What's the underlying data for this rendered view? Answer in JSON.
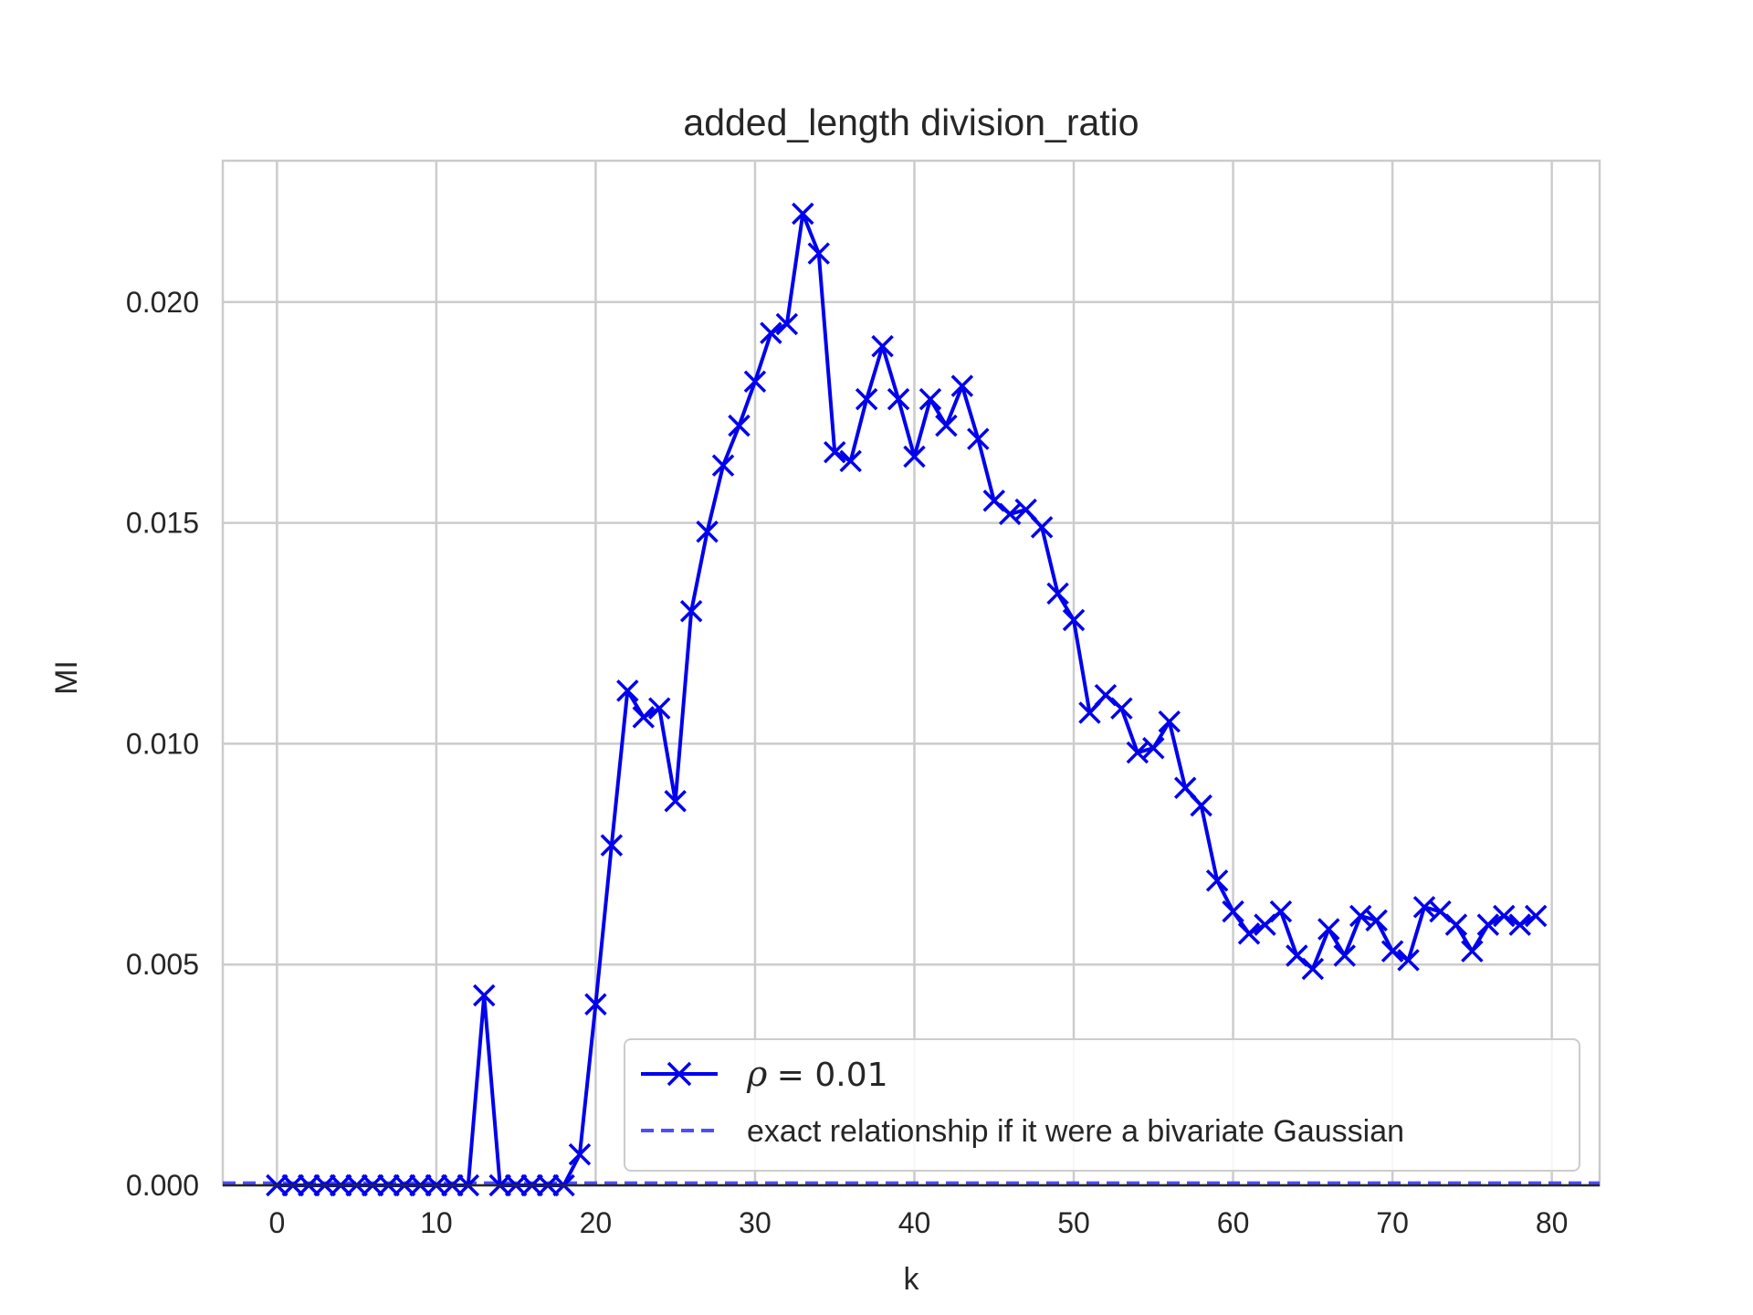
{
  "chart_data": {
    "type": "line",
    "title": "added_length division_ratio",
    "xlabel": "k",
    "ylabel": "MI",
    "xlim": [
      -3.4,
      83.0
    ],
    "ylim": [
      0.0,
      0.0232
    ],
    "xticks": [
      "0",
      "10",
      "20",
      "30",
      "40",
      "50",
      "60",
      "70",
      "80"
    ],
    "yticks": [
      "0.000",
      "0.005",
      "0.010",
      "0.015",
      "0.020"
    ],
    "grid": true,
    "legend_position": "bottom-right",
    "series": [
      {
        "name": "ρ = 0.01",
        "legend_symbol": "ρ",
        "legend_value": "= 0.01",
        "color": "#0000ee",
        "style": "solid",
        "marker": "x",
        "x": [
          0,
          1,
          2,
          3,
          4,
          5,
          6,
          7,
          8,
          9,
          10,
          11,
          12,
          13,
          14,
          15,
          16,
          17,
          18,
          19,
          20,
          21,
          22,
          23,
          24,
          25,
          26,
          27,
          28,
          29,
          30,
          31,
          32,
          33,
          34,
          35,
          36,
          37,
          38,
          39,
          40,
          41,
          42,
          43,
          44,
          45,
          46,
          47,
          48,
          49,
          50,
          51,
          52,
          53,
          54,
          55,
          56,
          57,
          58,
          59,
          60,
          61,
          62,
          63,
          64,
          65,
          66,
          67,
          68,
          69,
          70,
          71,
          72,
          73,
          74,
          75,
          76,
          77,
          78,
          79
        ],
        "y": [
          0.0,
          0.0,
          0.0,
          0.0,
          0.0,
          0.0,
          0.0,
          0.0,
          0.0,
          0.0,
          0.0,
          0.0,
          0.0,
          0.0043,
          0.0,
          0.0,
          0.0,
          0.0,
          0.0,
          0.0007,
          0.0041,
          0.0077,
          0.0112,
          0.0106,
          0.0108,
          0.0087,
          0.013,
          0.0148,
          0.0163,
          0.0172,
          0.0182,
          0.0193,
          0.0195,
          0.022,
          0.0211,
          0.0166,
          0.0164,
          0.0178,
          0.019,
          0.0178,
          0.0165,
          0.0178,
          0.0172,
          0.0181,
          0.0169,
          0.0155,
          0.0152,
          0.0153,
          0.0149,
          0.0134,
          0.0128,
          0.0107,
          0.0111,
          0.0108,
          0.0098,
          0.0099,
          0.0105,
          0.009,
          0.0086,
          0.0069,
          0.0062,
          0.0057,
          0.0059,
          0.0062,
          0.0052,
          0.0049,
          0.0058,
          0.0052,
          0.0061,
          0.006,
          0.0053,
          0.0051,
          0.0063,
          0.0062,
          0.0059,
          0.0053,
          0.0059,
          0.0061,
          0.0059,
          0.0061
        ]
      },
      {
        "name": "exact relationship if it were a bivariate Gaussian",
        "color": "#4d4dff",
        "style": "dashed",
        "y_constant": 5e-05
      }
    ]
  }
}
